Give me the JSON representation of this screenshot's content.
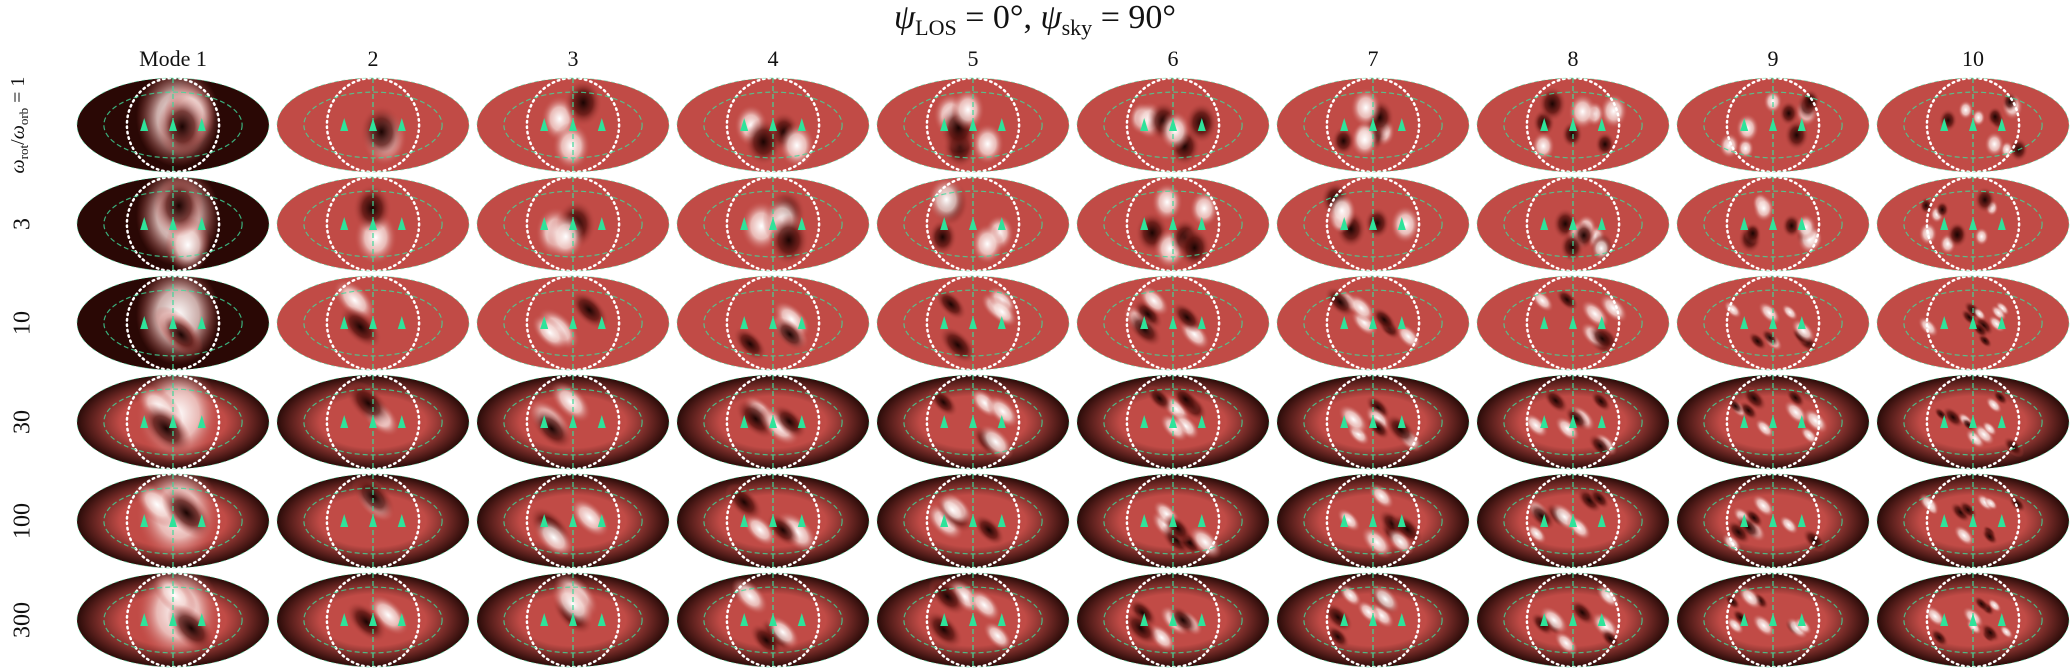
{
  "title": {
    "parts": [
      "ψ",
      "LOS",
      " = 0°, ",
      "ψ",
      "sky",
      " = 90°"
    ]
  },
  "columns": [
    "Mode 1",
    "2",
    "3",
    "4",
    "5",
    "6",
    "7",
    "8",
    "9",
    "10"
  ],
  "rows": {
    "first": {
      "parts": [
        "ω",
        "rot",
        "/",
        "ω",
        "orb",
        " = 1"
      ]
    },
    "others": [
      "3",
      "10",
      "30",
      "100",
      "300"
    ]
  }
}
